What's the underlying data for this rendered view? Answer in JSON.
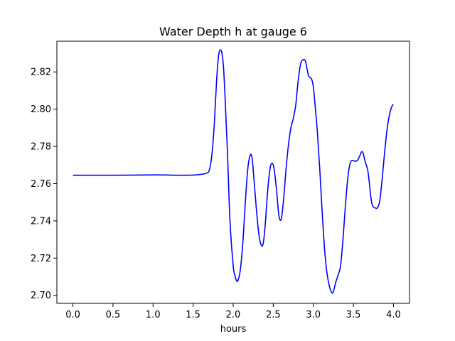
{
  "chart_data": {
    "type": "line",
    "title": "Water Depth h at gauge 6",
    "xlabel": "hours",
    "ylabel": "",
    "xlim": [
      -0.2,
      4.2
    ],
    "ylim": [
      2.6957,
      2.8365
    ],
    "xticks": [
      0.0,
      0.5,
      1.0,
      1.5,
      2.0,
      2.5,
      3.0,
      3.5,
      4.0
    ],
    "xtick_labels": [
      "0.0",
      "0.5",
      "1.0",
      "1.5",
      "2.0",
      "2.5",
      "3.0",
      "3.5",
      "4.0"
    ],
    "yticks": [
      2.7,
      2.72,
      2.74,
      2.76,
      2.78,
      2.8,
      2.82
    ],
    "ytick_labels": [
      "2.70",
      "2.72",
      "2.74",
      "2.76",
      "2.78",
      "2.80",
      "2.82"
    ],
    "grid": false,
    "legend": "none",
    "series": [
      {
        "color": "#0000ff",
        "x": [
          0.0,
          0.5,
          1.0,
          1.2,
          1.3,
          1.5,
          1.6,
          1.66,
          1.7,
          1.73,
          1.76,
          1.78,
          1.8,
          1.82,
          1.84,
          1.86,
          1.88,
          1.9,
          1.93,
          1.96,
          2.0,
          2.02,
          2.04,
          2.06,
          2.09,
          2.12,
          2.15,
          2.18,
          2.21,
          2.235,
          2.26,
          2.29,
          2.32,
          2.35,
          2.375,
          2.4,
          2.43,
          2.46,
          2.485,
          2.51,
          2.54,
          2.57,
          2.6,
          2.63,
          2.66,
          2.69,
          2.72,
          2.75,
          2.78,
          2.81,
          2.84,
          2.87,
          2.9,
          2.92,
          2.94,
          2.96,
          2.98,
          3.0,
          3.02,
          3.05,
          3.08,
          3.11,
          3.14,
          3.17,
          3.2,
          3.23,
          3.25,
          3.28,
          3.31,
          3.34,
          3.37,
          3.4,
          3.43,
          3.46,
          3.49,
          3.52,
          3.55,
          3.58,
          3.6,
          3.62,
          3.64,
          3.66,
          3.68,
          3.7,
          3.72,
          3.74,
          3.77,
          3.8,
          3.83,
          3.86,
          3.89,
          3.92,
          3.95,
          3.98,
          4.0
        ],
        "y": [
          2.7645,
          2.7645,
          2.7647,
          2.7646,
          2.7645,
          2.7646,
          2.765,
          2.7655,
          2.767,
          2.774,
          2.789,
          2.805,
          2.82,
          2.8295,
          2.8318,
          2.83,
          2.822,
          2.805,
          2.775,
          2.74,
          2.716,
          2.711,
          2.708,
          2.708,
          2.714,
          2.728,
          2.749,
          2.767,
          2.775,
          2.774,
          2.762,
          2.746,
          2.733,
          2.727,
          2.728,
          2.738,
          2.756,
          2.768,
          2.771,
          2.768,
          2.757,
          2.743,
          2.741,
          2.752,
          2.768,
          2.781,
          2.79,
          2.795,
          2.802,
          2.815,
          2.824,
          2.8265,
          2.826,
          2.822,
          2.818,
          2.817,
          2.816,
          2.812,
          2.803,
          2.788,
          2.768,
          2.745,
          2.725,
          2.712,
          2.705,
          2.7015,
          2.702,
          2.707,
          2.711,
          2.716,
          2.73,
          2.748,
          2.763,
          2.771,
          2.7725,
          2.772,
          2.7725,
          2.775,
          2.777,
          2.7765,
          2.773,
          2.77,
          2.767,
          2.76,
          2.752,
          2.748,
          2.747,
          2.747,
          2.751,
          2.763,
          2.777,
          2.789,
          2.797,
          2.8015,
          2.8025
        ]
      }
    ]
  }
}
